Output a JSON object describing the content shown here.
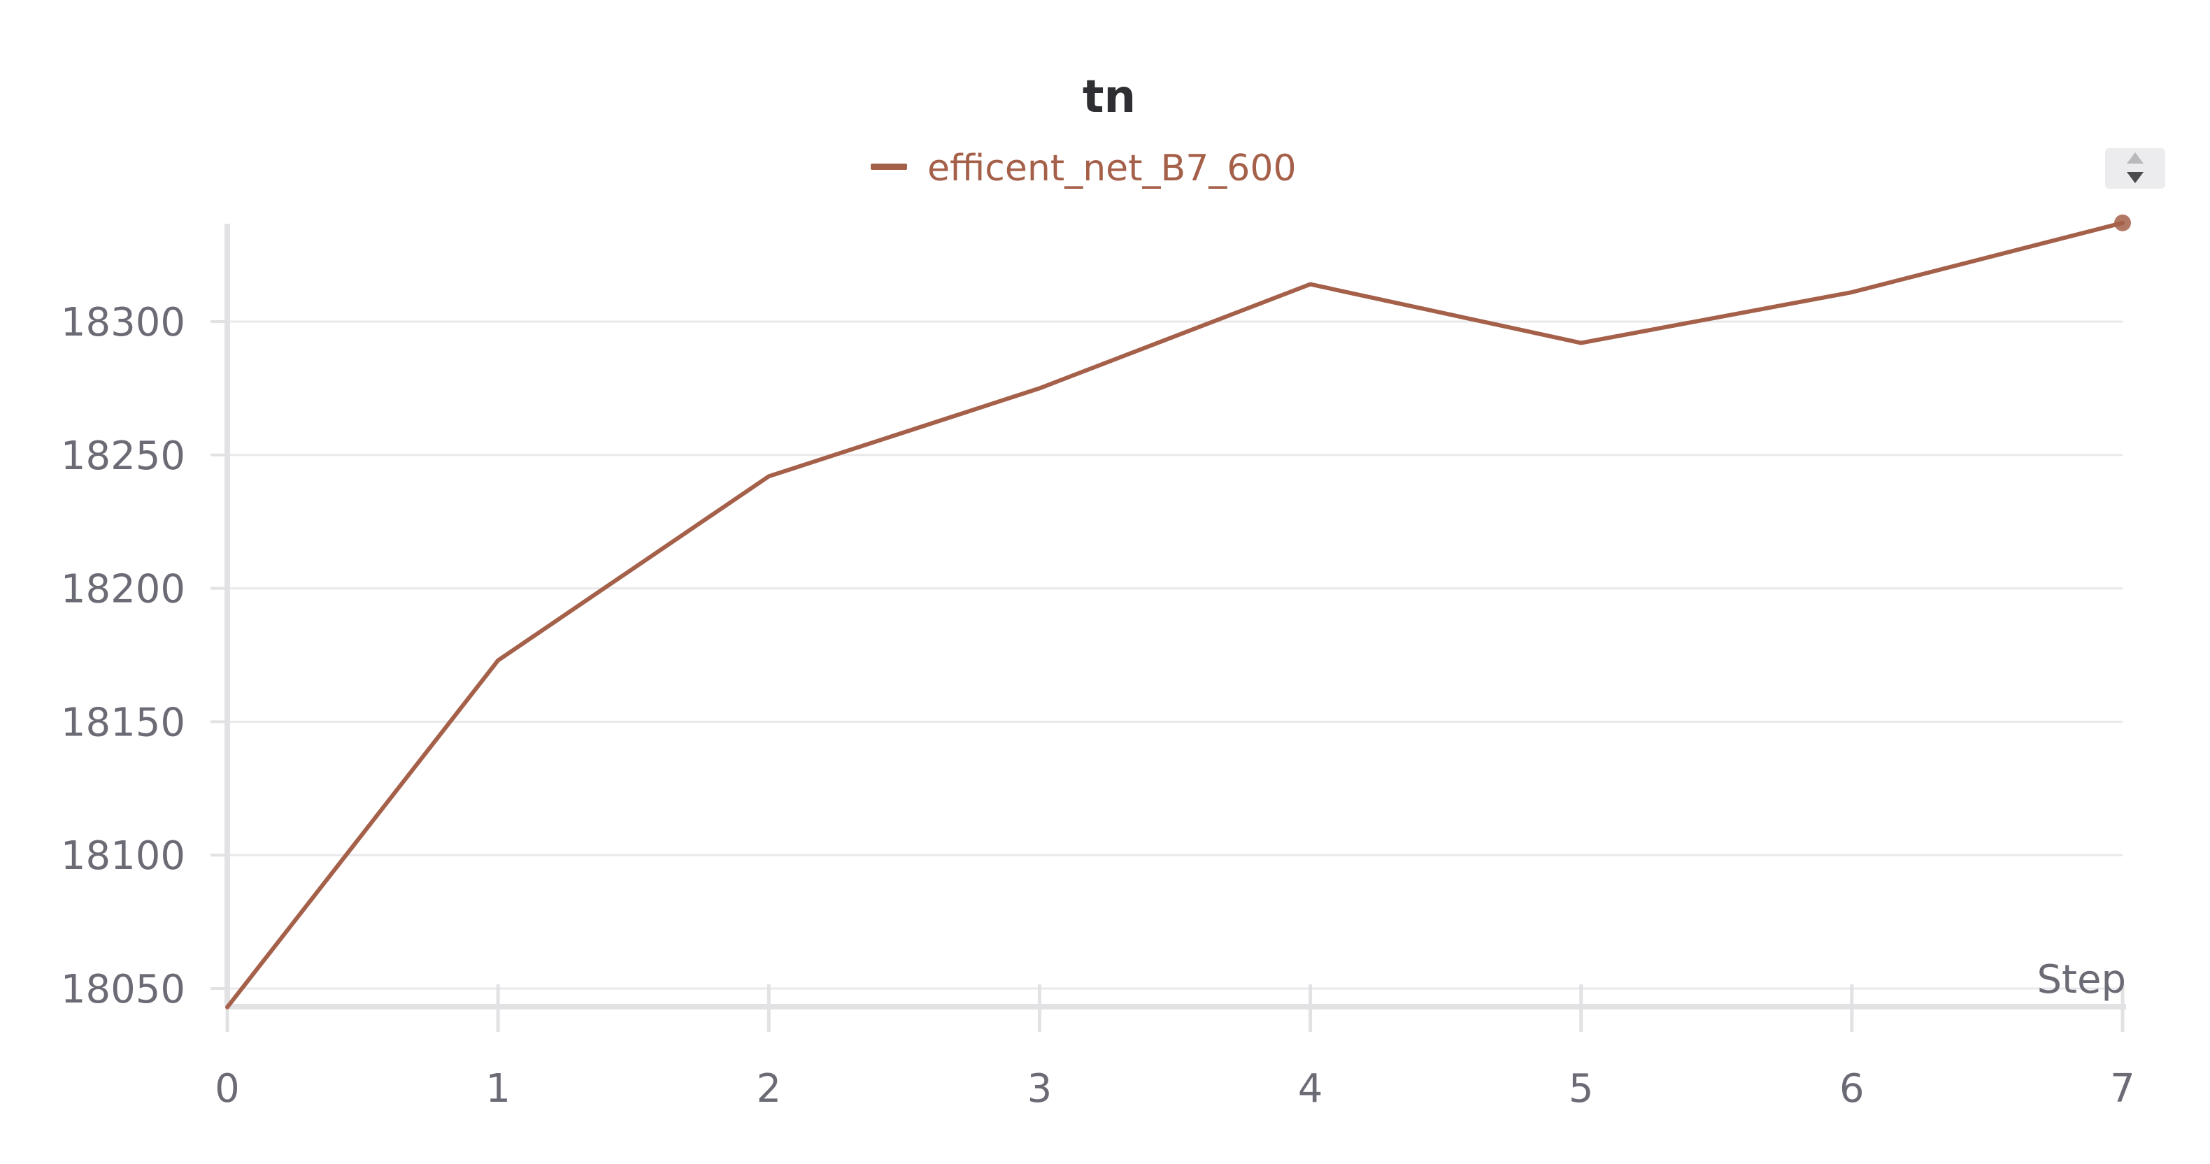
{
  "chart_data": {
    "type": "line",
    "title": "tn",
    "xlabel": "Step",
    "ylabel": "",
    "x": [
      0,
      1,
      2,
      3,
      4,
      5,
      6,
      7
    ],
    "xlim": [
      0,
      7
    ],
    "ylim": [
      18043,
      18338
    ],
    "x_ticks": [
      0,
      1,
      2,
      3,
      4,
      5,
      6,
      7
    ],
    "y_ticks": [
      18050,
      18100,
      18150,
      18200,
      18250,
      18300
    ],
    "grid": true,
    "legend_position": "top-center",
    "series": [
      {
        "name": "efficent_net_B7_600",
        "color": "#a5604a",
        "values": [
          18043,
          18173,
          18242,
          18275,
          18314,
          18292,
          18311,
          18337
        ]
      }
    ]
  },
  "colors": {
    "series": "#a5604a",
    "grid": "#e9e9ec",
    "axis": "#e2e2e4",
    "text": "#6b6b76",
    "title": "#2f2f33",
    "scroll_control_bg": "#ececee",
    "scroll_control_arrow": "#4a4a4f"
  },
  "icons": {
    "legend_scroll": "up-down-arrows-icon"
  }
}
